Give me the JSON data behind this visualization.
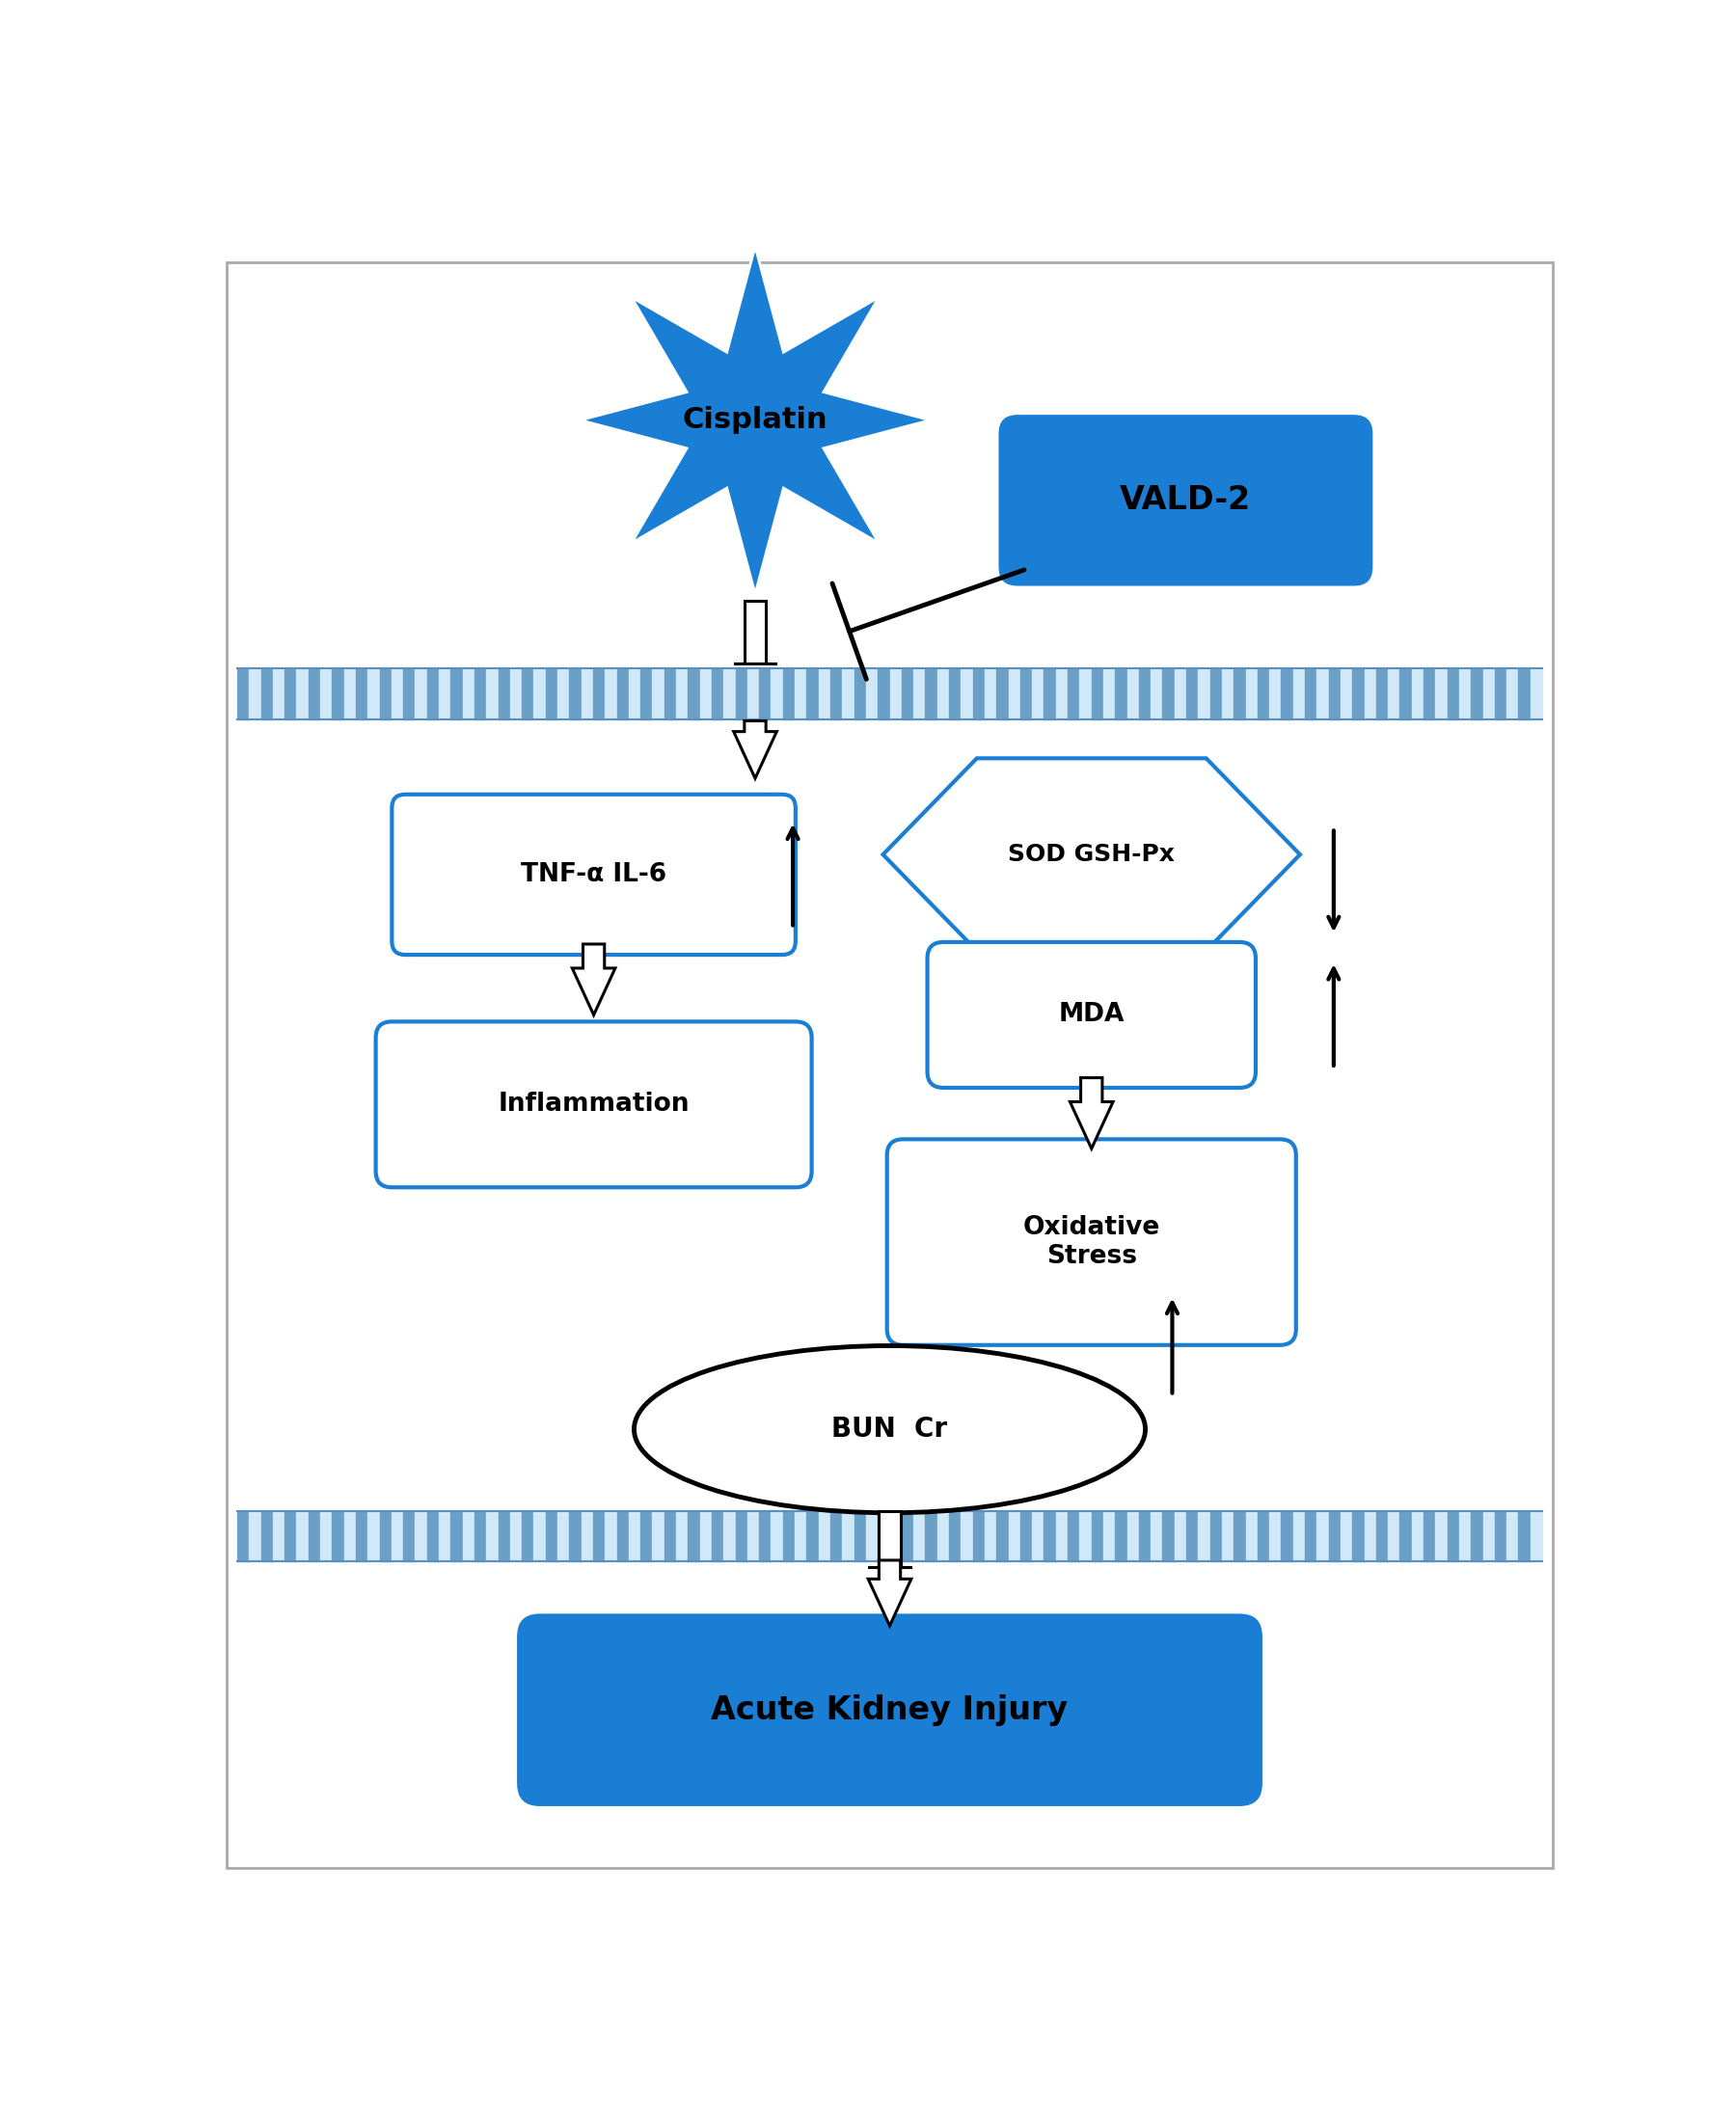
{
  "bg_color": "#ffffff",
  "blue_fill": "#1a7fd4",
  "blue_border": "#1a7fd4",
  "membrane_color_dark": "#6a9fc8",
  "membrane_color_light": "#d0e8f8",
  "fig_width": 18.0,
  "fig_height": 21.87,
  "cisplatin_text": "Cisplatin",
  "vald2_text": "VALD-2",
  "tnf_text": "TNF-α IL-6",
  "sod_text": "SOD GSH-Px",
  "mda_text": "MDA",
  "inflammation_text": "Inflammation",
  "oxidative_text": "Oxidative\nStress",
  "bun_text": "BUN  Cr",
  "aki_text": "Acute Kidney Injury"
}
